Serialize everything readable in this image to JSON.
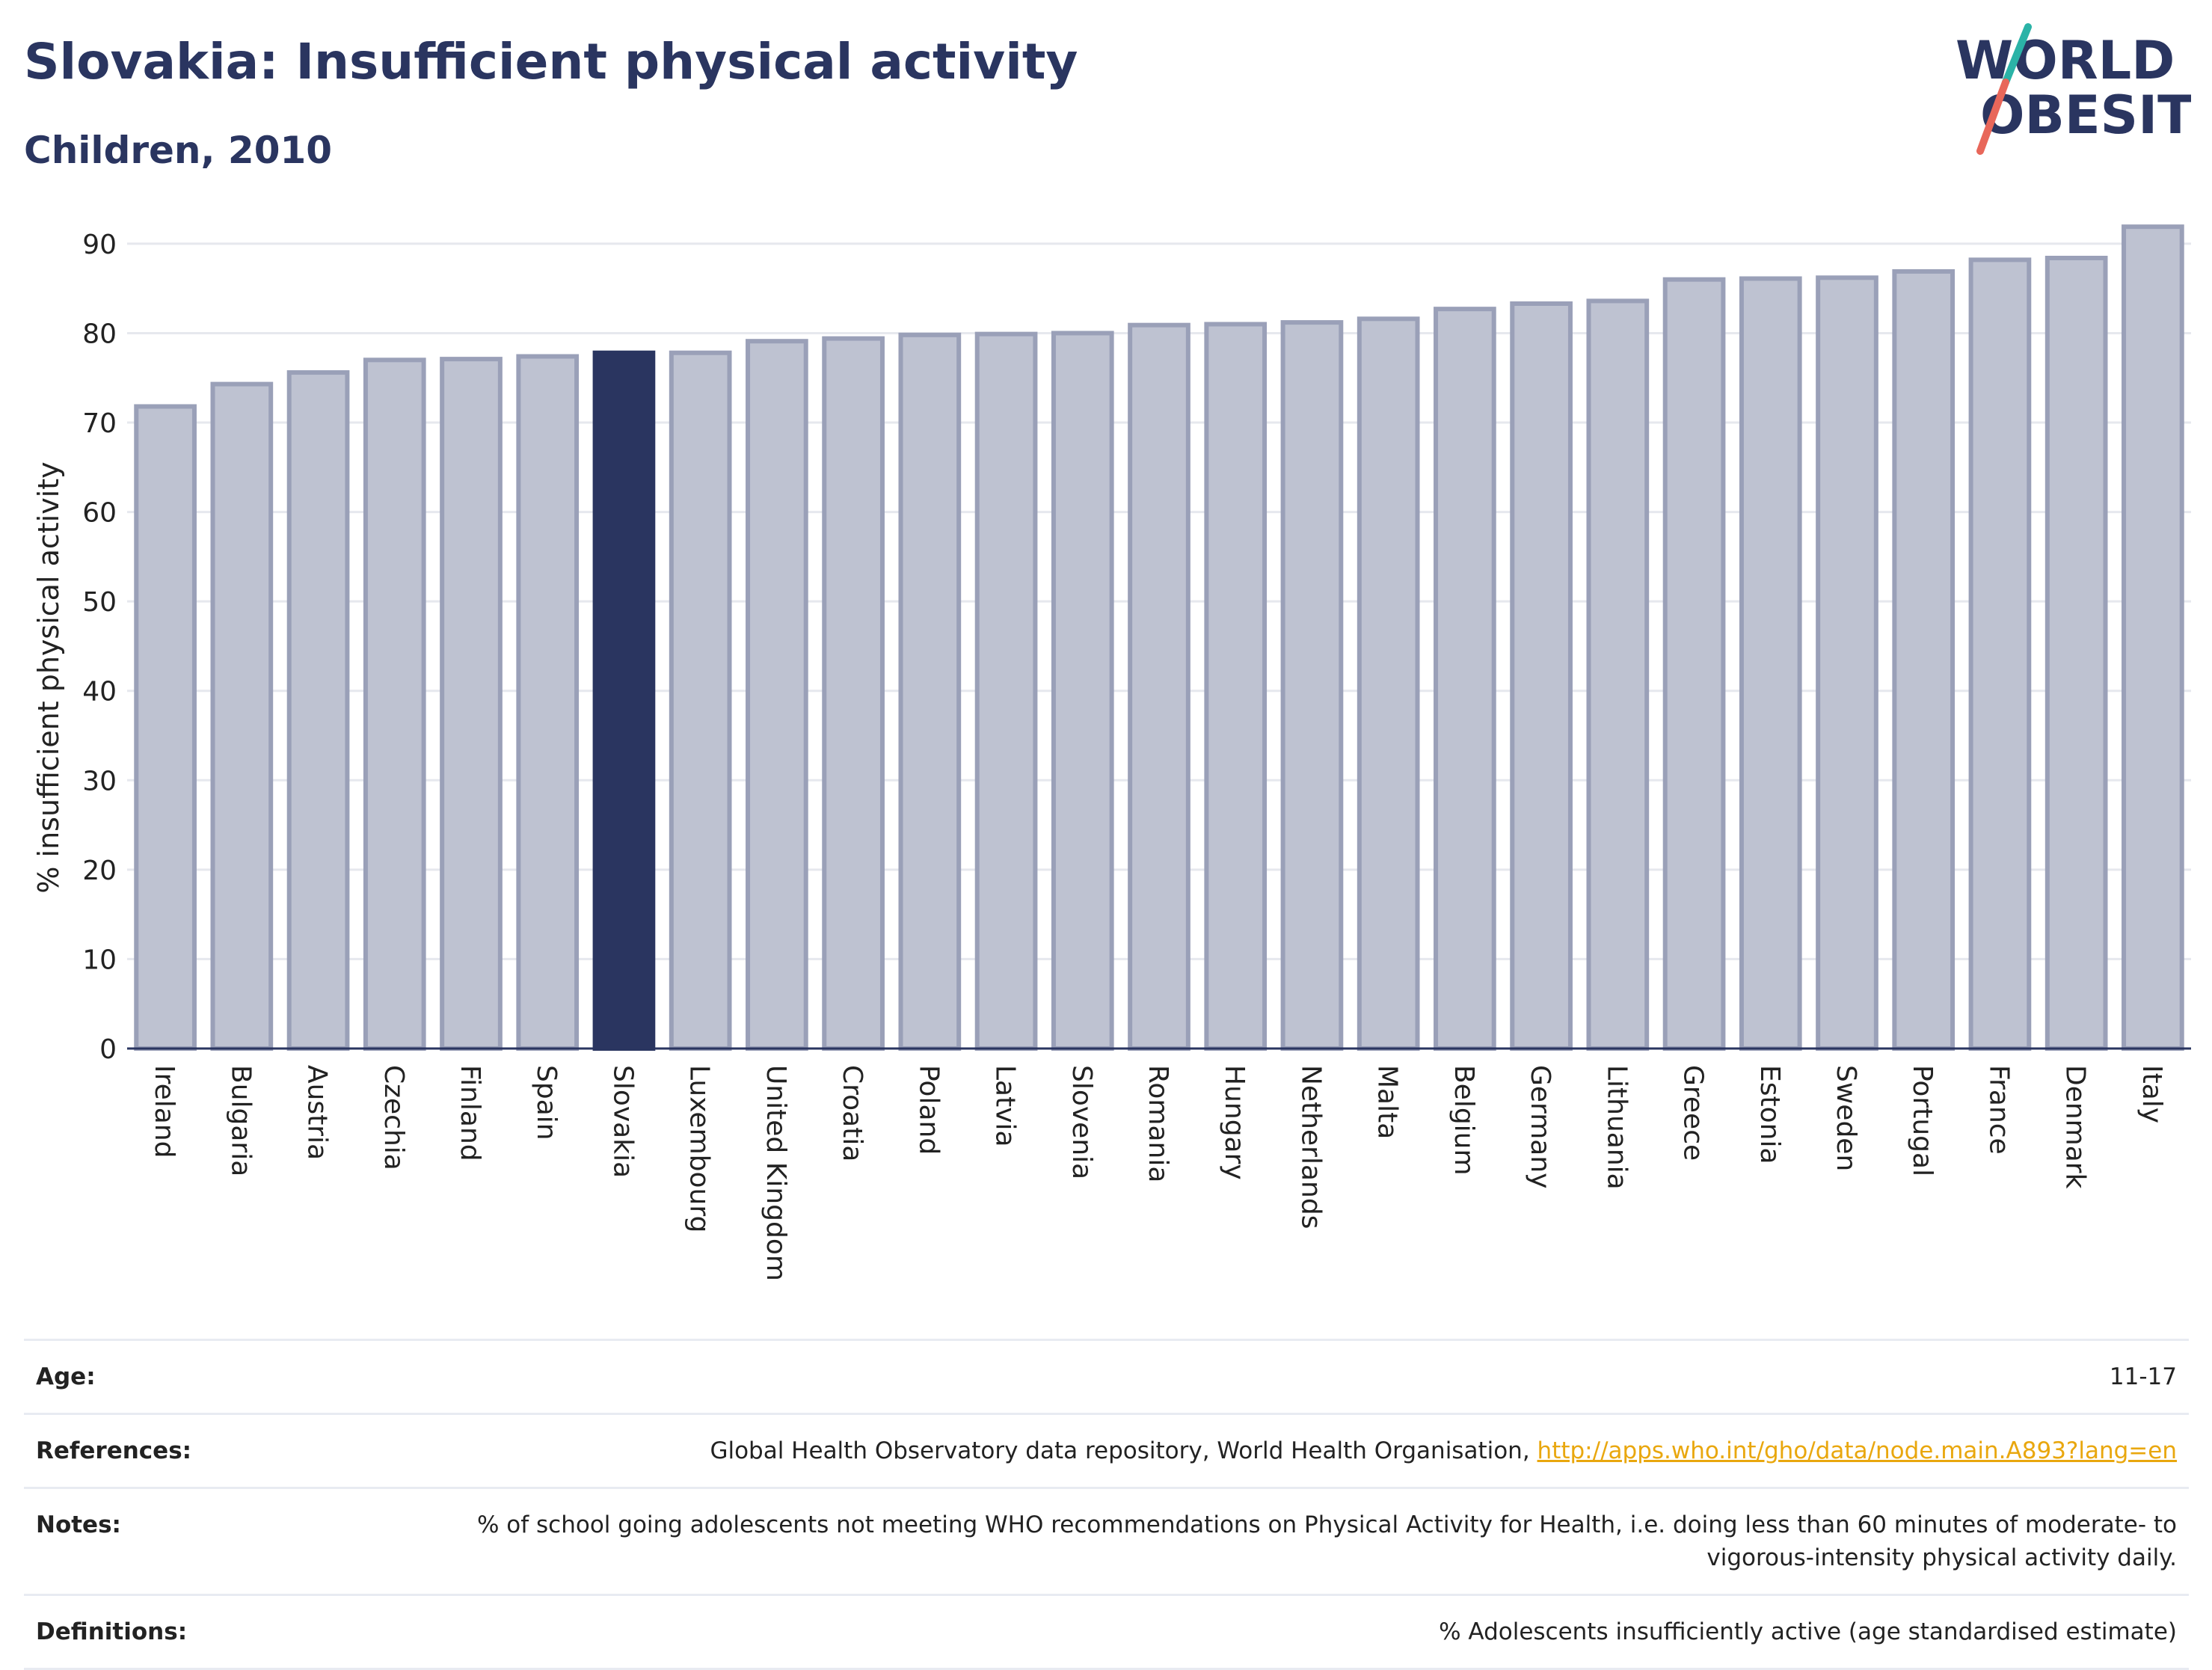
{
  "header": {
    "title": "Slovakia: Insufficient physical activity",
    "subtitle": "Children, 2010"
  },
  "logo": {
    "line1": "WORLD",
    "line2": "OBESITY"
  },
  "colors": {
    "title": "#2a3560",
    "highlight_bar": "#2a3560",
    "bar_fill": "#bec2d1",
    "bar_stroke": "#9aa0b8",
    "link": "#e9a70e",
    "logo_accent_teal": "#2bb3a7",
    "logo_accent_red": "#e8675a"
  },
  "chart_data": {
    "type": "bar",
    "ylabel": "% insufficient physical activity",
    "ylim": [
      0,
      93
    ],
    "yticks": [
      0,
      10,
      20,
      30,
      40,
      50,
      60,
      70,
      80,
      90
    ],
    "grid": true,
    "highlight": "Slovakia",
    "categories": [
      "Ireland",
      "Bulgaria",
      "Austria",
      "Czechia",
      "Finland",
      "Spain",
      "Slovakia",
      "Luxembourg",
      "United Kingdom",
      "Croatia",
      "Poland",
      "Latvia",
      "Slovenia",
      "Romania",
      "Hungary",
      "Netherlands",
      "Malta",
      "Belgium",
      "Germany",
      "Lithuania",
      "Greece",
      "Estonia",
      "Sweden",
      "Portugal",
      "France",
      "Denmark",
      "Italy"
    ],
    "values": [
      71.8,
      74.3,
      75.6,
      77.0,
      77.1,
      77.4,
      77.8,
      77.8,
      79.1,
      79.4,
      79.8,
      79.9,
      80.0,
      80.9,
      81.0,
      81.2,
      81.6,
      82.7,
      83.3,
      83.6,
      86.0,
      86.1,
      86.2,
      86.9,
      88.2,
      88.4,
      91.9
    ]
  },
  "meta": {
    "age_label": "Age:",
    "age_value": "11-17",
    "references_label": "References:",
    "references_text": "Global Health Observatory data repository, World Health Organisation, ",
    "references_link": "http://apps.who.int/gho/data/node.main.A893?lang=en",
    "notes_label": "Notes:",
    "notes_text": "% of school going adolescents not meeting WHO recommendations on Physical Activity for Health, i.e. doing less than 60 minutes of moderate- to vigorous-intensity physical activity daily.",
    "definitions_label": "Definitions:",
    "definitions_text": "% Adolescents insufficiently active (age standardised estimate)"
  }
}
